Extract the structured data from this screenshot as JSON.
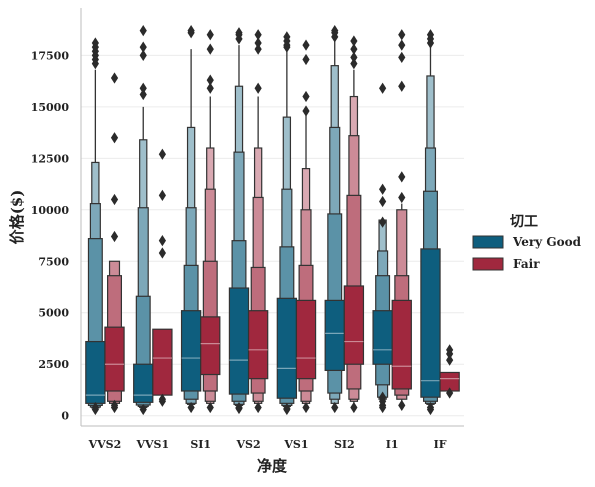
{
  "chart_data": {
    "type": "boxen",
    "xlabel": "净度",
    "ylabel": "价格($)",
    "categories": [
      "VVS2",
      "VVS1",
      "SI1",
      "VS2",
      "VS1",
      "SI2",
      "I1",
      "IF"
    ],
    "yticks": [
      0,
      2500,
      5000,
      7500,
      10000,
      12500,
      15000,
      17500
    ],
    "ylim": [
      -500,
      19800
    ],
    "grid": "horizontal",
    "legend": {
      "title": "切工",
      "placement": "right",
      "entries": [
        {
          "label": "Very Good",
          "color": "#0e5e7e"
        },
        {
          "label": "Fair",
          "color": "#a0283e"
        }
      ]
    },
    "series": [
      {
        "name": "Very Good",
        "color": "#0e5e7e",
        "data": [
          {
            "category": "VVS2",
            "median": 1000,
            "levels": [
              [
                600,
                3600
              ],
              [
                500,
                8600
              ],
              [
                420,
                10300
              ],
              [
                380,
                12300
              ]
            ],
            "whisker": [
              350,
              16800
            ],
            "outliers": [
              300,
              400,
              17100,
              17300,
              17500,
              17700,
              17900,
              18100
            ]
          },
          {
            "category": "VVS1",
            "median": 1000,
            "levels": [
              [
                650,
                2500
              ],
              [
                520,
                5800
              ],
              [
                450,
                10100
              ],
              [
                400,
                13400
              ]
            ],
            "whisker": [
              380,
              15000
            ],
            "outliers": [
              300,
              15600,
              15900,
              17500,
              17900,
              18700
            ]
          },
          {
            "category": "SI1",
            "median": 2800,
            "levels": [
              [
                1200,
                5100
              ],
              [
                800,
                7300
              ],
              [
                600,
                10100
              ],
              [
                550,
                14000
              ]
            ],
            "whisker": [
              500,
              17800
            ],
            "outliers": [
              400,
              18600,
              18700
            ]
          },
          {
            "category": "VS2",
            "median": 2700,
            "levels": [
              [
                1050,
                6200
              ],
              [
                700,
                8500
              ],
              [
                550,
                12800
              ],
              [
                500,
                16000
              ]
            ],
            "whisker": [
              450,
              18000
            ],
            "outliers": [
              350,
              400,
              18300,
              18500,
              18600
            ]
          },
          {
            "category": "VS1",
            "median": 2300,
            "levels": [
              [
                850,
                5700
              ],
              [
                600,
                8200
              ],
              [
                500,
                11000
              ],
              [
                450,
                14500
              ]
            ],
            "whisker": [
              420,
              17700
            ],
            "outliers": [
              300,
              350,
              17900,
              18000,
              18200,
              18400
            ]
          },
          {
            "category": "SI2",
            "median": 4000,
            "levels": [
              [
                2200,
                5600
              ],
              [
                1100,
                9800
              ],
              [
                800,
                14000
              ],
              [
                600,
                17000
              ]
            ],
            "whisker": [
              500,
              18200
            ],
            "outliers": [
              400,
              18400,
              18600,
              18700
            ]
          },
          {
            "category": "I1",
            "median": 3200,
            "levels": [
              [
                2500,
                5100
              ],
              [
                1500,
                6800
              ],
              [
                900,
                8000
              ],
              [
                800,
                9500
              ]
            ],
            "whisker": [
              800,
              9500
            ],
            "outliers": [
              400,
              500,
              700,
              900,
              9400,
              10400,
              11000,
              15900
            ]
          },
          {
            "category": "IF",
            "median": 1700,
            "levels": [
              [
                900,
                8100
              ],
              [
                700,
                10900
              ],
              [
                600,
                13000
              ],
              [
                550,
                16500
              ]
            ],
            "whisker": [
              500,
              18000
            ],
            "outliers": [
              300,
              400,
              18100,
              18300,
              18500
            ]
          }
        ]
      },
      {
        "name": "Fair",
        "color": "#a0283e",
        "data": [
          {
            "category": "VVS2",
            "median": 2500,
            "levels": [
              [
                1200,
                4300
              ],
              [
                700,
                6800
              ],
              [
                600,
                7500
              ]
            ],
            "whisker": [
              600,
              7500
            ],
            "outliers": [
              400,
              500,
              8700,
              10500,
              13500,
              16400
            ]
          },
          {
            "category": "VVS1",
            "median": 2800,
            "levels": [
              [
                1000,
                4200
              ]
            ],
            "whisker": [
              1000,
              4200
            ],
            "outliers": [
              700,
              800,
              7900,
              8500,
              10700,
              12700
            ]
          },
          {
            "category": "SI1",
            "median": 3500,
            "levels": [
              [
                2000,
                4800
              ],
              [
                1200,
                7500
              ],
              [
                700,
                11000
              ],
              [
                600,
                13000
              ]
            ],
            "whisker": [
              500,
              15500
            ],
            "outliers": [
              400,
              15900,
              16300,
              17800,
              18500
            ]
          },
          {
            "category": "VS2",
            "median": 3200,
            "levels": [
              [
                1800,
                5100
              ],
              [
                1100,
                7200
              ],
              [
                700,
                10600
              ],
              [
                600,
                13000
              ]
            ],
            "whisker": [
              500,
              15500
            ],
            "outliers": [
              400,
              15900,
              17800,
              18100,
              18500
            ]
          },
          {
            "category": "VS1",
            "median": 2800,
            "levels": [
              [
                1800,
                5600
              ],
              [
                1200,
                7300
              ],
              [
                700,
                10000
              ],
              [
                600,
                12000
              ]
            ],
            "whisker": [
              500,
              14600
            ],
            "outliers": [
              400,
              14800,
              15500,
              17300,
              18000
            ]
          },
          {
            "category": "SI2",
            "median": 3600,
            "levels": [
              [
                2500,
                6300
              ],
              [
                1300,
                10700
              ],
              [
                800,
                13600
              ],
              [
                700,
                15500
              ]
            ],
            "whisker": [
              600,
              16800
            ],
            "outliers": [
              400,
              17100,
              17400,
              17800,
              18200
            ]
          },
          {
            "category": "I1",
            "median": 2400,
            "levels": [
              [
                1300,
                5600
              ],
              [
                1000,
                6800
              ],
              [
                800,
                10000
              ]
            ],
            "whisker": [
              700,
              10300
            ],
            "outliers": [
              500,
              10600,
              11600,
              16000,
              17400,
              18000,
              18500
            ]
          },
          {
            "category": "IF",
            "median": 1800,
            "levels": [
              [
                1200,
                2100
              ]
            ],
            "whisker": [
              1200,
              2100
            ],
            "outliers": [
              1100,
              2700,
              3000,
              3200
            ]
          }
        ]
      }
    ]
  }
}
